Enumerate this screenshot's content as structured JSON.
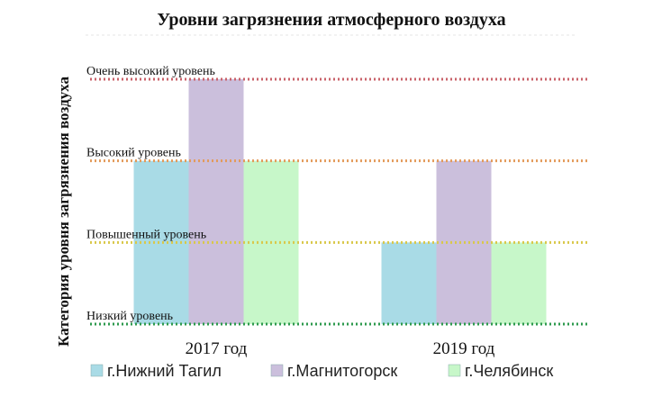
{
  "chart_data": {
    "type": "bar",
    "title": "Уровни загрязнения атмосферного воздуха",
    "xlabel": "",
    "ylabel": "Категория уровня загрязнения воздуха",
    "categories": [
      "2017 год",
      "2019 год"
    ],
    "levels": [
      {
        "label": "Низкий уровень",
        "value": 0,
        "color": "#2e9a4e"
      },
      {
        "label": "Повышенный уровень",
        "value": 1,
        "color": "#d9c84a"
      },
      {
        "label": "Высокий уровень",
        "value": 2,
        "color": "#e39a5a"
      },
      {
        "label": "Очень высокий уровень",
        "value": 3,
        "color": "#c9626a"
      }
    ],
    "ylim": [
      0,
      3
    ],
    "series": [
      {
        "name": "г.Нижний Тагил",
        "values": [
          2,
          1
        ],
        "color": "#a9dbe6"
      },
      {
        "name": "г.Магнитогорск",
        "values": [
          3,
          2
        ],
        "color": "#cbbfdc"
      },
      {
        "name": "г.Челябинск",
        "values": [
          2,
          1
        ],
        "color": "#c7f7c9"
      }
    ],
    "legend_position": "bottom"
  }
}
